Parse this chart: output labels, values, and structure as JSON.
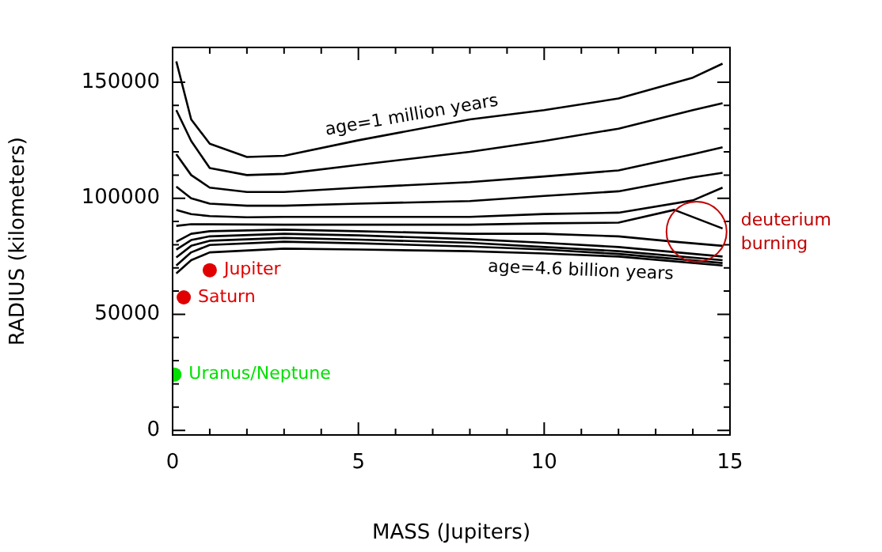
{
  "chart_data": {
    "type": "line",
    "xlabel": "MASS (Jupiters)",
    "ylabel": "RADIUS (kilometers)",
    "xlim": [
      0,
      15
    ],
    "ylim": [
      -2000,
      165000
    ],
    "xticks": [
      0,
      {
        "value": 1,
        "label": null
      },
      {
        "value": 2,
        "label": null
      },
      {
        "value": 3,
        "label": null
      },
      {
        "value": 4,
        "label": null
      },
      5,
      {
        "value": 6,
        "label": null
      },
      {
        "value": 7,
        "label": null
      },
      {
        "value": 8,
        "label": null
      },
      {
        "value": 9,
        "label": null
      },
      10,
      {
        "value": 11,
        "label": null
      },
      {
        "value": 12,
        "label": null
      },
      {
        "value": 13,
        "label": null
      },
      {
        "value": 14,
        "label": null
      },
      15
    ],
    "yticks": [
      0,
      {
        "value": 10000,
        "label": null
      },
      {
        "value": 20000,
        "label": null
      },
      {
        "value": 30000,
        "label": null
      },
      {
        "value": 40000,
        "label": null
      },
      50000,
      {
        "value": 60000,
        "label": null
      },
      {
        "value": 70000,
        "label": null
      },
      {
        "value": 80000,
        "label": null
      },
      {
        "value": 90000,
        "label": null
      },
      100000,
      {
        "value": 110000,
        "label": null
      },
      {
        "value": 120000,
        "label": null
      },
      {
        "value": 130000,
        "label": null
      },
      {
        "value": 140000,
        "label": null
      },
      150000
    ],
    "grid": false,
    "legend": false,
    "line_style": "solid",
    "x": [
      0.1,
      0.5,
      1,
      2,
      3,
      5,
      8,
      10,
      12,
      14,
      14.8
    ],
    "series": [
      {
        "color": "#000000",
        "marker": "none",
        "values": [
          159000,
          134000,
          123500,
          117800,
          118300,
          125000,
          134000,
          138000,
          143000,
          152000,
          158000
        ]
      },
      {
        "color": "#000000",
        "marker": "none",
        "values": [
          138000,
          124700,
          113000,
          110000,
          110500,
          114400,
          120000,
          124700,
          130000,
          138000,
          141000
        ]
      },
      {
        "color": "#000000",
        "marker": "none",
        "values": [
          119000,
          110000,
          104600,
          102700,
          102700,
          104600,
          107000,
          109400,
          112000,
          119000,
          122000
        ]
      },
      {
        "color": "#000000",
        "marker": "none",
        "values": [
          105000,
          100000,
          97700,
          96800,
          96800,
          97700,
          98800,
          101000,
          103000,
          109000,
          111000
        ]
      },
      {
        "color": "#000000",
        "marker": "none",
        "values": [
          95000,
          93200,
          92300,
          91800,
          92000,
          92000,
          92000,
          93200,
          93800,
          99100,
          104600
        ]
      },
      {
        "color": "#000000",
        "marker": "none",
        "x": [
          0.1,
          0.5,
          1,
          3,
          5,
          8,
          10,
          12,
          13.5,
          14.8
        ],
        "values": [
          88100,
          88800,
          88800,
          88600,
          88600,
          88600,
          89200,
          89500,
          95000,
          87000
        ]
      },
      {
        "color": "#000000",
        "marker": "none",
        "x": [
          0.1,
          0.5,
          1,
          3,
          5,
          8,
          10,
          12,
          13.5,
          14.8
        ],
        "values": [
          81300,
          84700,
          85800,
          86500,
          85800,
          84700,
          84700,
          83600,
          81300,
          79500
        ]
      },
      {
        "color": "#000000",
        "marker": "none",
        "x": [
          0.1,
          0.5,
          1,
          3,
          5,
          8,
          10,
          12,
          14.8
        ],
        "values": [
          77900,
          82000,
          83600,
          84700,
          84000,
          82400,
          80800,
          79000,
          74900
        ]
      },
      {
        "color": "#000000",
        "marker": "none",
        "x": [
          0.1,
          0.5,
          1,
          3,
          5,
          8,
          10,
          12,
          14.8
        ],
        "values": [
          74500,
          79500,
          81700,
          82900,
          82200,
          80800,
          79000,
          77200,
          73300
        ]
      },
      {
        "color": "#000000",
        "marker": "none",
        "x": [
          0.1,
          0.5,
          1,
          3,
          5,
          8,
          10,
          12,
          14.8
        ],
        "values": [
          71000,
          76700,
          79900,
          81300,
          80600,
          79200,
          77900,
          76000,
          72100
        ]
      },
      {
        "color": "#000000",
        "marker": "none",
        "x": [
          0.1,
          0.5,
          1,
          3,
          5,
          8,
          10,
          12,
          14.8
        ],
        "values": [
          67600,
          73300,
          76700,
          78300,
          77900,
          77200,
          76200,
          74900,
          71000
        ]
      },
      {
        "type": "scatter",
        "name": "Jupiter",
        "color": "#e00000",
        "marker": "circle",
        "x": [
          1
        ],
        "values": [
          69000
        ]
      },
      {
        "type": "scatter",
        "name": "Saturn",
        "color": "#e00000",
        "marker": "circle",
        "x": [
          0.3
        ],
        "values": [
          57300
        ]
      },
      {
        "type": "scatter",
        "name": "Uranus/Neptune",
        "color": "#00e000",
        "marker": "circle",
        "x": [
          0.05
        ],
        "values": [
          24000
        ]
      }
    ],
    "annotations": [
      {
        "text": "age=1 million years",
        "x": 6.5,
        "y": 129500
      },
      {
        "text": "age=4.6 billion years",
        "x": 11,
        "y": 75500
      },
      {
        "text": "deuterium burning",
        "x": 14.1,
        "y": 85600
      }
    ]
  }
}
